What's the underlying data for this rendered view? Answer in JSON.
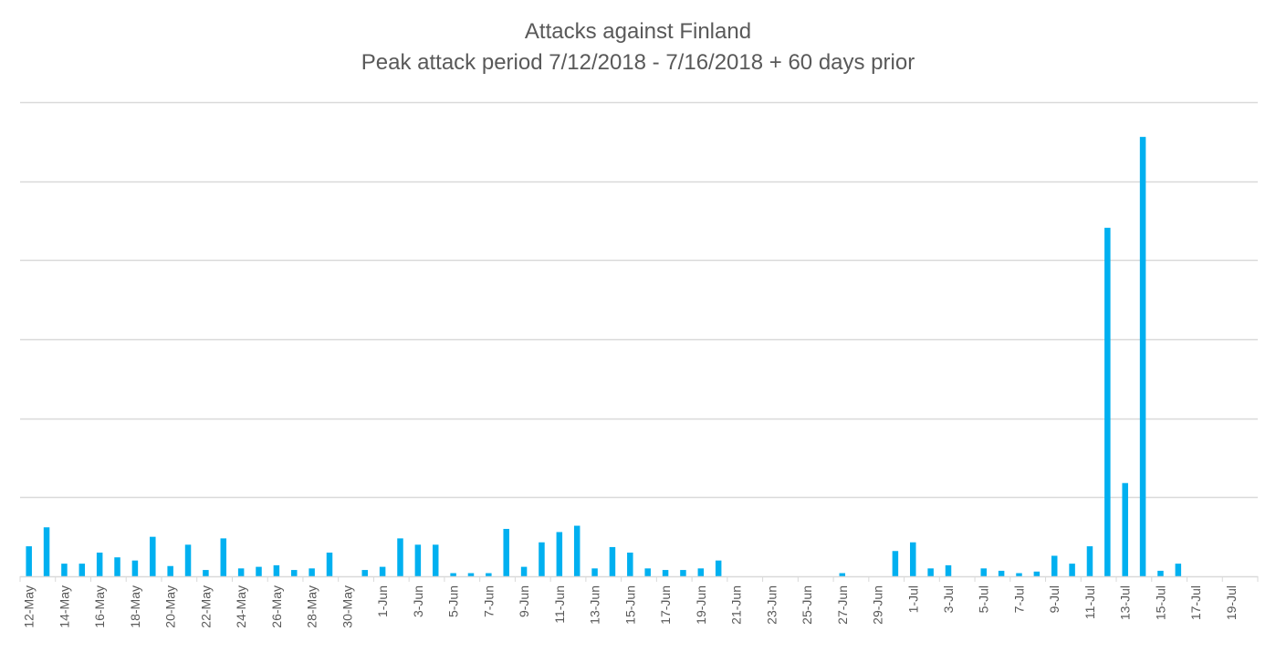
{
  "chart_data": {
    "type": "bar",
    "title": "Attacks against Finland",
    "subtitle": "Peak attack period 7/12/2018 - 7/16/2018 + 60 days prior",
    "xlabel": "",
    "ylabel": "",
    "grid": true,
    "legend": "none",
    "bar_color": "#00B0F0",
    "ylim": [
      0,
      600
    ],
    "categories": [
      "12-May",
      "13-May",
      "14-May",
      "15-May",
      "16-May",
      "17-May",
      "18-May",
      "19-May",
      "20-May",
      "21-May",
      "22-May",
      "23-May",
      "24-May",
      "25-May",
      "26-May",
      "27-May",
      "28-May",
      "29-May",
      "30-May",
      "31-May",
      "1-Jun",
      "2-Jun",
      "3-Jun",
      "4-Jun",
      "5-Jun",
      "6-Jun",
      "7-Jun",
      "8-Jun",
      "9-Jun",
      "10-Jun",
      "11-Jun",
      "12-Jun",
      "13-Jun",
      "14-Jun",
      "15-Jun",
      "16-Jun",
      "17-Jun",
      "18-Jun",
      "19-Jun",
      "20-Jun",
      "21-Jun",
      "22-Jun",
      "23-Jun",
      "24-Jun",
      "25-Jun",
      "26-Jun",
      "27-Jun",
      "28-Jun",
      "29-Jun",
      "30-Jun",
      "1-Jul",
      "2-Jul",
      "3-Jul",
      "4-Jul",
      "5-Jul",
      "6-Jul",
      "7-Jul",
      "8-Jul",
      "9-Jul",
      "10-Jul",
      "11-Jul",
      "12-Jul",
      "13-Jul",
      "14-Jul",
      "15-Jul",
      "16-Jul",
      "17-Jul",
      "18-Jul",
      "19-Jul",
      "20-Jul"
    ],
    "tick_labels": [
      "12-May",
      "14-May",
      "16-May",
      "18-May",
      "20-May",
      "22-May",
      "24-May",
      "26-May",
      "28-May",
      "30-May",
      "1-Jun",
      "3-Jun",
      "5-Jun",
      "7-Jun",
      "9-Jun",
      "11-Jun",
      "13-Jun",
      "15-Jun",
      "17-Jun",
      "19-Jun",
      "21-Jun",
      "23-Jun",
      "25-Jun",
      "27-Jun",
      "29-Jun",
      "1-Jul",
      "3-Jul",
      "5-Jul",
      "7-Jul",
      "9-Jul",
      "11-Jul",
      "13-Jul",
      "15-Jul",
      "17-Jul",
      "19-Jul"
    ],
    "series": [
      {
        "values": [
          38,
          62,
          16,
          16,
          30,
          24,
          20,
          50,
          13,
          40,
          8,
          48,
          10,
          12,
          14,
          8,
          10,
          30,
          0,
          8,
          12,
          48,
          40,
          40,
          4,
          4,
          4,
          60,
          12,
          43,
          56,
          64,
          10,
          37,
          30,
          10,
          8,
          8,
          10,
          20,
          0,
          0,
          0,
          0,
          0,
          0,
          4,
          0,
          0,
          32,
          43,
          10,
          14,
          0,
          10,
          7,
          4,
          6,
          26,
          16,
          38,
          441,
          118,
          556,
          7,
          16,
          0,
          0,
          0,
          0
        ]
      }
    ]
  }
}
